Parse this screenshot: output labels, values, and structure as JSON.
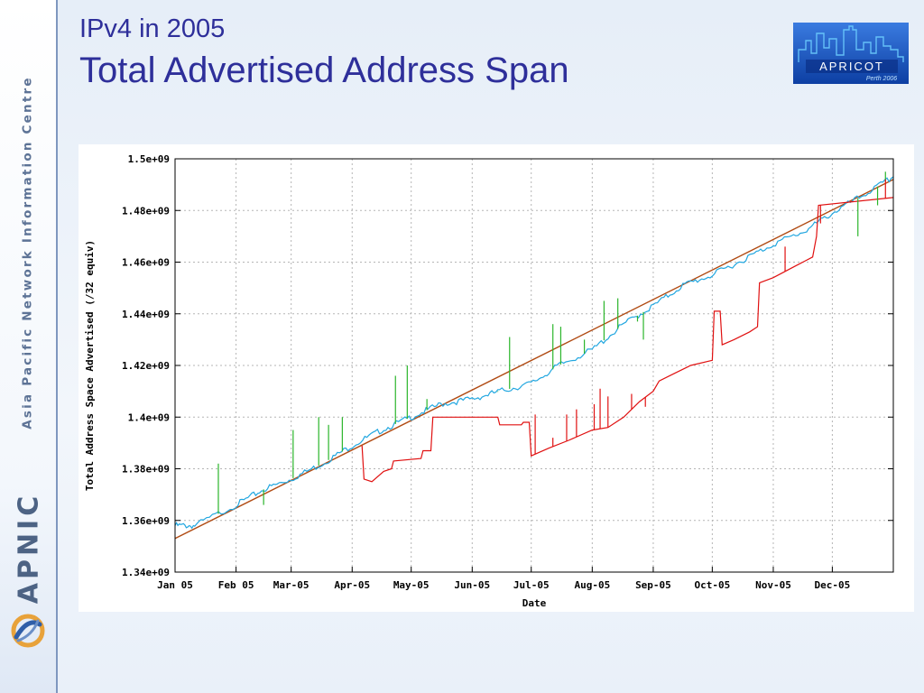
{
  "slide": {
    "title_line1": "IPv4 in 2005",
    "title_line2": "Total Advertised Address Span",
    "sidebar_text": "Asia Pacific Network Information Centre",
    "sidebar_logo_text": "APNIC",
    "event_logo": {
      "name": "APRICOT",
      "subtitle": "Perth 2006",
      "icon": "city-skyline-icon"
    },
    "apnic_icon": "apnic-swirl-icon"
  },
  "colors": {
    "title": "#2e2f9a",
    "series_blue": "#22a7e0",
    "series_green": "#2bb52b",
    "series_red": "#e01010",
    "trend": "#b04a12",
    "grid": "#b5b5b5"
  },
  "chart_data": {
    "type": "line",
    "title": "",
    "xlabel": "Date",
    "ylabel": "Total Address Space Advertised (/32 equiv)",
    "ylim": [
      1340000000.0,
      1500000000.0
    ],
    "ytick_values": [
      1340000000.0,
      1360000000.0,
      1380000000.0,
      1400000000.0,
      1420000000.0,
      1440000000.0,
      1460000000.0,
      1480000000.0,
      1500000000.0
    ],
    "ytick_labels": [
      "1.34e+09",
      "1.36e+09",
      "1.38e+09",
      "1.4e+09",
      "1.42e+09",
      "1.44e+09",
      "1.46e+09",
      "1.48e+09",
      "1.5e+09"
    ],
    "x_unit": "day of year 2005",
    "xlim": [
      0,
      365
    ],
    "xtick_values": [
      0,
      31,
      59,
      90,
      120,
      151,
      181,
      212,
      243,
      273,
      304,
      334
    ],
    "xtick_labels": [
      "Jan 05",
      "Feb 05",
      "Mar-05",
      "Apr-05",
      "May-05",
      "Jun-05",
      "Jul-05",
      "Aug-05",
      "Sep-05",
      "Oct-05",
      "Nov-05",
      "Dec-05"
    ],
    "grid": true,
    "series": [
      {
        "color": "#b04a12",
        "x": [
          0,
          365
        ],
        "y": [
          1353000000.0,
          1492000000.0
        ]
      },
      {
        "color": "#22a7e0",
        "x": [
          0,
          10,
          31,
          45,
          59,
          75,
          90,
          105,
          120,
          135,
          151,
          165,
          181,
          195,
          212,
          228,
          243,
          258,
          273,
          289,
          304,
          320,
          334,
          350,
          365
        ],
        "y": [
          1358000000.0,
          1358000000.0,
          1366000000.0,
          1372000000.0,
          1376000000.0,
          1382000000.0,
          1389000000.0,
          1395000000.0,
          1400000000.0,
          1405000000.0,
          1407000000.0,
          1410000000.0,
          1413000000.0,
          1420000000.0,
          1426000000.0,
          1436000000.0,
          1443000000.0,
          1451000000.0,
          1455000000.0,
          1461000000.0,
          1467000000.0,
          1472000000.0,
          1479000000.0,
          1486000000.0,
          1493000000.0
        ]
      },
      {
        "color": "#e01010",
        "x": [
          95,
          96,
          100,
          106,
          110,
          111,
          125,
          126,
          130,
          131,
          151,
          164,
          165,
          176,
          177,
          180,
          181,
          190,
          200,
          212,
          220,
          228,
          236,
          243,
          246,
          254,
          262,
          273,
          274,
          277,
          278,
          284,
          292,
          296,
          297,
          304,
          314,
          324,
          326,
          327,
          365
        ],
        "y": [
          1389000000.0,
          1376000000.0,
          1375000000.0,
          1379000000.0,
          1380000000.0,
          1383000000.0,
          1384000000.0,
          1387000000.0,
          1387000000.0,
          1400000000.0,
          1400000000.0,
          1400000000.0,
          1397000000.0,
          1397000000.0,
          1398000000.0,
          1398000000.0,
          1385000000.0,
          1388000000.0,
          1391000000.0,
          1395000000.0,
          1396000000.0,
          1400000000.0,
          1406000000.0,
          1410000000.0,
          1414000000.0,
          1417000000.0,
          1420000000.0,
          1422000000.0,
          1441000000.0,
          1441000000.0,
          1428000000.0,
          1430000000.0,
          1433000000.0,
          1435000000.0,
          1452000000.0,
          1454000000.0,
          1458000000.0,
          1462000000.0,
          1470000000.0,
          1482000000.0,
          1485000000.0
        ]
      }
    ],
    "spikes": [
      {
        "color": "#2bb52b",
        "x": [
          22,
          45,
          60,
          73,
          78,
          85,
          112,
          118,
          128,
          164,
          170,
          192,
          196,
          208,
          218,
          225,
          235,
          238,
          347,
          357,
          361
        ],
        "top": [
          1382000000.0,
          1366000000.0,
          1395000000.0,
          1400000000.0,
          1397000000.0,
          1400000000.0,
          1416000000.0,
          1420000000.0,
          1407000000.0,
          1410000000.0,
          1431000000.0,
          1436000000.0,
          1435000000.0,
          1430000000.0,
          1445000000.0,
          1446000000.0,
          1437000000.0,
          1430000000.0,
          1470000000.0,
          1482000000.0,
          1495000000.0
        ]
      },
      {
        "color": "#e01010",
        "x": [
          183,
          192,
          199,
          204,
          213,
          216,
          220,
          232,
          239,
          310,
          328,
          361
        ],
        "top": [
          1401000000.0,
          1392000000.0,
          1401000000.0,
          1403000000.0,
          1405000000.0,
          1411000000.0,
          1408000000.0,
          1409000000.0,
          1404000000.0,
          1466000000.0,
          1475000000.0,
          1492000000.0
        ]
      }
    ]
  }
}
